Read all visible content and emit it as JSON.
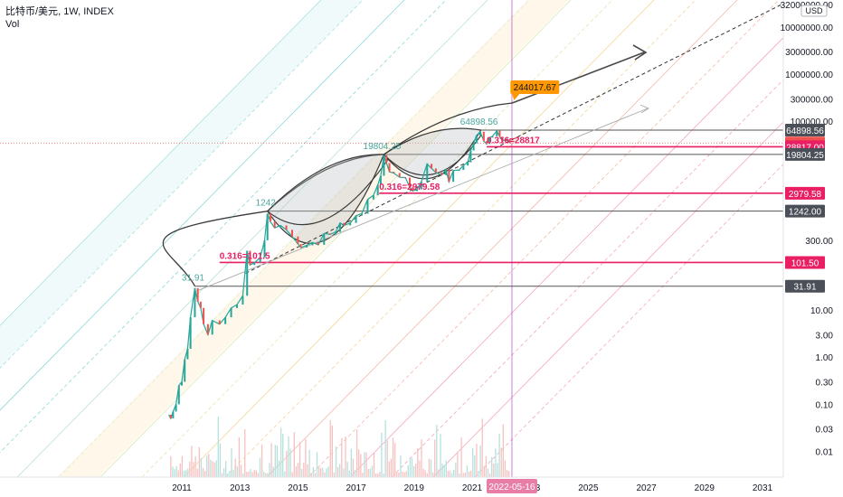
{
  "header": {
    "symbol": "比特币/美元",
    "interval": "1W",
    "source": "INDEX",
    "volume_label": "Vol"
  },
  "colors": {
    "candle_up": "#26a69a",
    "candle_down": "#ef5350",
    "fib_level": "#e91e63",
    "price_level": "#131722",
    "arrow": "#4a4a4a",
    "crosshair": "#9c27b0",
    "target_badge": "#ff9800",
    "peak_label": "#4aa6a0"
  },
  "chart_data": {
    "type": "line",
    "title": "",
    "y_scale": "log",
    "ylim": [
      0.003,
      32000000
    ],
    "xlim": [
      2010.3,
      2031.0
    ],
    "currency_label": "USD",
    "x_ticks": [
      "2011",
      "2013",
      "2015",
      "2017",
      "2019",
      "2021",
      "2023",
      "2025",
      "2027",
      "2029",
      "2031"
    ],
    "y_ticks": [
      {
        "value": 32000000,
        "label": "32000000.00"
      },
      {
        "value": 10000000,
        "label": "10000000.00"
      },
      {
        "value": 3000000,
        "label": "3000000.00"
      },
      {
        "value": 1000000,
        "label": "1000000.00"
      },
      {
        "value": 300000,
        "label": "300000.00"
      },
      {
        "value": 100000,
        "label": "100000.00"
      },
      {
        "value": 300,
        "label": "300.00"
      },
      {
        "value": 10,
        "label": "10.00"
      },
      {
        "value": 3,
        "label": "3.00"
      },
      {
        "value": 1,
        "label": "1.00"
      },
      {
        "value": 0.3,
        "label": "0.30"
      },
      {
        "value": 0.1,
        "label": "0.10"
      },
      {
        "value": 0.03,
        "label": "0.03"
      },
      {
        "value": 0.01,
        "label": "0.01"
      }
    ],
    "price_levels": [
      {
        "value": 64898.56,
        "label": "64898.56",
        "kind": "level"
      },
      {
        "value": 34607.48,
        "label": "34607.48",
        "kind": "current"
      },
      {
        "value": 28817.0,
        "label": "28817.00",
        "kind": "fib"
      },
      {
        "value": 19804.25,
        "label": "19804.25",
        "kind": "level"
      },
      {
        "value": 2979.58,
        "label": "2979.58",
        "kind": "fib"
      },
      {
        "value": 1242.0,
        "label": "1242.00",
        "kind": "level"
      },
      {
        "value": 101.5,
        "label": "101.50",
        "kind": "fib"
      },
      {
        "value": 31.91,
        "label": "31.91",
        "kind": "level"
      }
    ],
    "fib_annotations": [
      {
        "label": "0.316=101.5",
        "x": 2012.3,
        "value": 101.5
      },
      {
        "label": "0.316=2979.58",
        "x": 2017.8,
        "value": 2979.58
      },
      {
        "label": "0.316=28817",
        "x": 2021.5,
        "value": 28817
      }
    ],
    "peaks": [
      {
        "label": "31.91",
        "x": 2011.45,
        "value": 31.91
      },
      {
        "label": "1242",
        "x": 2013.95,
        "value": 1242
      },
      {
        "label": "19804.25",
        "x": 2017.96,
        "value": 19804.25
      },
      {
        "label": "64898.56",
        "x": 2021.3,
        "value": 64898.56
      }
    ],
    "target": {
      "label": "244017.67",
      "x": 2022.38,
      "value": 244017.67
    },
    "date_marker": {
      "label": "2022-05-16",
      "x": 2022.37
    },
    "price_series": [
      {
        "x": 2010.55,
        "y": 0.06
      },
      {
        "x": 2010.62,
        "y": 0.05
      },
      {
        "x": 2010.7,
        "y": 0.07
      },
      {
        "x": 2010.8,
        "y": 0.1
      },
      {
        "x": 2010.9,
        "y": 0.25
      },
      {
        "x": 2011.0,
        "y": 0.3
      },
      {
        "x": 2011.1,
        "y": 0.9
      },
      {
        "x": 2011.2,
        "y": 1.5
      },
      {
        "x": 2011.3,
        "y": 7
      },
      {
        "x": 2011.45,
        "y": 29
      },
      {
        "x": 2011.55,
        "y": 15
      },
      {
        "x": 2011.65,
        "y": 11
      },
      {
        "x": 2011.75,
        "y": 5
      },
      {
        "x": 2011.9,
        "y": 3
      },
      {
        "x": 2012.05,
        "y": 6
      },
      {
        "x": 2012.3,
        "y": 5
      },
      {
        "x": 2012.5,
        "y": 7
      },
      {
        "x": 2012.7,
        "y": 11
      },
      {
        "x": 2012.9,
        "y": 13
      },
      {
        "x": 2013.1,
        "y": 20
      },
      {
        "x": 2013.25,
        "y": 180
      },
      {
        "x": 2013.35,
        "y": 90
      },
      {
        "x": 2013.5,
        "y": 100
      },
      {
        "x": 2013.7,
        "y": 130
      },
      {
        "x": 2013.85,
        "y": 300
      },
      {
        "x": 2013.95,
        "y": 1100
      },
      {
        "x": 2014.05,
        "y": 750
      },
      {
        "x": 2014.2,
        "y": 550
      },
      {
        "x": 2014.4,
        "y": 620
      },
      {
        "x": 2014.6,
        "y": 500
      },
      {
        "x": 2014.8,
        "y": 360
      },
      {
        "x": 2015.0,
        "y": 250
      },
      {
        "x": 2015.1,
        "y": 210
      },
      {
        "x": 2015.3,
        "y": 235
      },
      {
        "x": 2015.5,
        "y": 270
      },
      {
        "x": 2015.7,
        "y": 240
      },
      {
        "x": 2015.9,
        "y": 420
      },
      {
        "x": 2016.1,
        "y": 400
      },
      {
        "x": 2016.3,
        "y": 450
      },
      {
        "x": 2016.45,
        "y": 700
      },
      {
        "x": 2016.6,
        "y": 620
      },
      {
        "x": 2016.8,
        "y": 700
      },
      {
        "x": 2017.0,
        "y": 1000
      },
      {
        "x": 2017.2,
        "y": 1100
      },
      {
        "x": 2017.4,
        "y": 2200
      },
      {
        "x": 2017.6,
        "y": 2700
      },
      {
        "x": 2017.75,
        "y": 4500
      },
      {
        "x": 2017.85,
        "y": 7000
      },
      {
        "x": 2017.96,
        "y": 19000
      },
      {
        "x": 2018.05,
        "y": 13000
      },
      {
        "x": 2018.15,
        "y": 8500
      },
      {
        "x": 2018.3,
        "y": 8000
      },
      {
        "x": 2018.5,
        "y": 6500
      },
      {
        "x": 2018.7,
        "y": 6400
      },
      {
        "x": 2018.85,
        "y": 4000
      },
      {
        "x": 2018.95,
        "y": 3300
      },
      {
        "x": 2019.1,
        "y": 3600
      },
      {
        "x": 2019.25,
        "y": 5200
      },
      {
        "x": 2019.45,
        "y": 12500
      },
      {
        "x": 2019.6,
        "y": 10000
      },
      {
        "x": 2019.75,
        "y": 8200
      },
      {
        "x": 2019.95,
        "y": 7200
      },
      {
        "x": 2020.1,
        "y": 9500
      },
      {
        "x": 2020.2,
        "y": 5200
      },
      {
        "x": 2020.35,
        "y": 9000
      },
      {
        "x": 2020.55,
        "y": 9300
      },
      {
        "x": 2020.7,
        "y": 11500
      },
      {
        "x": 2020.85,
        "y": 13500
      },
      {
        "x": 2020.95,
        "y": 24000
      },
      {
        "x": 2021.05,
        "y": 34000
      },
      {
        "x": 2021.15,
        "y": 50000
      },
      {
        "x": 2021.28,
        "y": 60000
      },
      {
        "x": 2021.4,
        "y": 38000
      },
      {
        "x": 2021.5,
        "y": 33000
      },
      {
        "x": 2021.6,
        "y": 45000
      },
      {
        "x": 2021.7,
        "y": 48000
      },
      {
        "x": 2021.85,
        "y": 63000
      },
      {
        "x": 2021.95,
        "y": 47000
      },
      {
        "x": 2022.05,
        "y": 38000
      },
      {
        "x": 2022.2,
        "y": 42000
      },
      {
        "x": 2022.3,
        "y": 34607.48
      }
    ]
  }
}
